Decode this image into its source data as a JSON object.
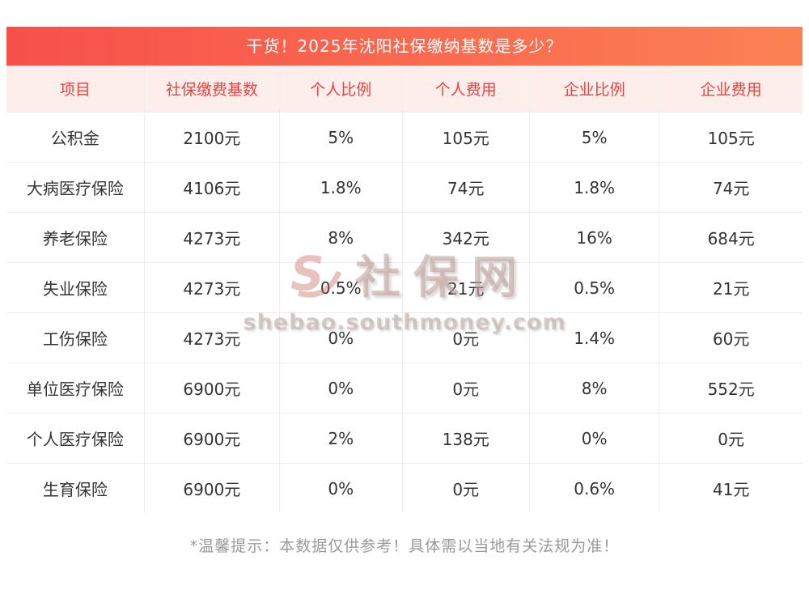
{
  "title_bar": {
    "text": "干货！2025年沈阳社保缴纳基数是多少？"
  },
  "table": {
    "headers": [
      "项目",
      "社保缴费基数",
      "个人比例",
      "个人费用",
      "企业比例",
      "企业费用"
    ],
    "rows": [
      [
        "公积金",
        "2100元",
        "5%",
        "105元",
        "5%",
        "105元"
      ],
      [
        "大病医疗保险",
        "4106元",
        "1.8%",
        "74元",
        "1.8%",
        "74元"
      ],
      [
        "养老保险",
        "4273元",
        "8%",
        "342元",
        "16%",
        "684元"
      ],
      [
        "失业保险",
        "4273元",
        "0.5%",
        "21元",
        "0.5%",
        "21元"
      ],
      [
        "工伤保险",
        "4273元",
        "0%",
        "0元",
        "1.4%",
        "60元"
      ],
      [
        "单位医疗保险",
        "6900元",
        "0%",
        "0元",
        "8%",
        "552元"
      ],
      [
        "个人医疗保险",
        "6900元",
        "2%",
        "138元",
        "0%",
        "0元"
      ],
      [
        "生育保险",
        "6900元",
        "0%",
        "0元",
        "0.6%",
        "41元"
      ]
    ]
  },
  "footnote": "*温馨提示：本数据仅供参考！具体需以当地有关法规为准！",
  "watermark": {
    "logo": "s-swirl-logo",
    "brand": "社保网",
    "url": "shebao.southmoney.com"
  },
  "colors": {
    "title_gradient_start": "#f7504b",
    "title_gradient_end": "#fb8154",
    "header_bg": "#fdedeb",
    "header_text": "#e8433e",
    "cell_text": "#333333",
    "cell_border": "#f0eded",
    "footnote_text": "#9a9a9a"
  },
  "chart_data": {
    "type": "table",
    "title": "干货！2025年沈阳社保缴纳基数是多少？",
    "columns": [
      "项目",
      "社保缴费基数",
      "个人比例",
      "个人费用",
      "企业比例",
      "企业费用"
    ],
    "rows": [
      [
        "公积金",
        "2100元",
        "5%",
        "105元",
        "5%",
        "105元"
      ],
      [
        "大病医疗保险",
        "4106元",
        "1.8%",
        "74元",
        "1.8%",
        "74元"
      ],
      [
        "养老保险",
        "4273元",
        "8%",
        "342元",
        "16%",
        "684元"
      ],
      [
        "失业保险",
        "4273元",
        "0.5%",
        "21元",
        "0.5%",
        "21元"
      ],
      [
        "工伤保险",
        "4273元",
        "0%",
        "0元",
        "1.4%",
        "60元"
      ],
      [
        "单位医疗保险",
        "6900元",
        "0%",
        "0元",
        "8%",
        "552元"
      ],
      [
        "个人医疗保险",
        "6900元",
        "2%",
        "138元",
        "0%",
        "0元"
      ],
      [
        "生育保险",
        "6900元",
        "0%",
        "0元",
        "0.6%",
        "41元"
      ]
    ],
    "footnote": "*温馨提示：本数据仅供参考！具体需以当地有关法规为准！"
  }
}
